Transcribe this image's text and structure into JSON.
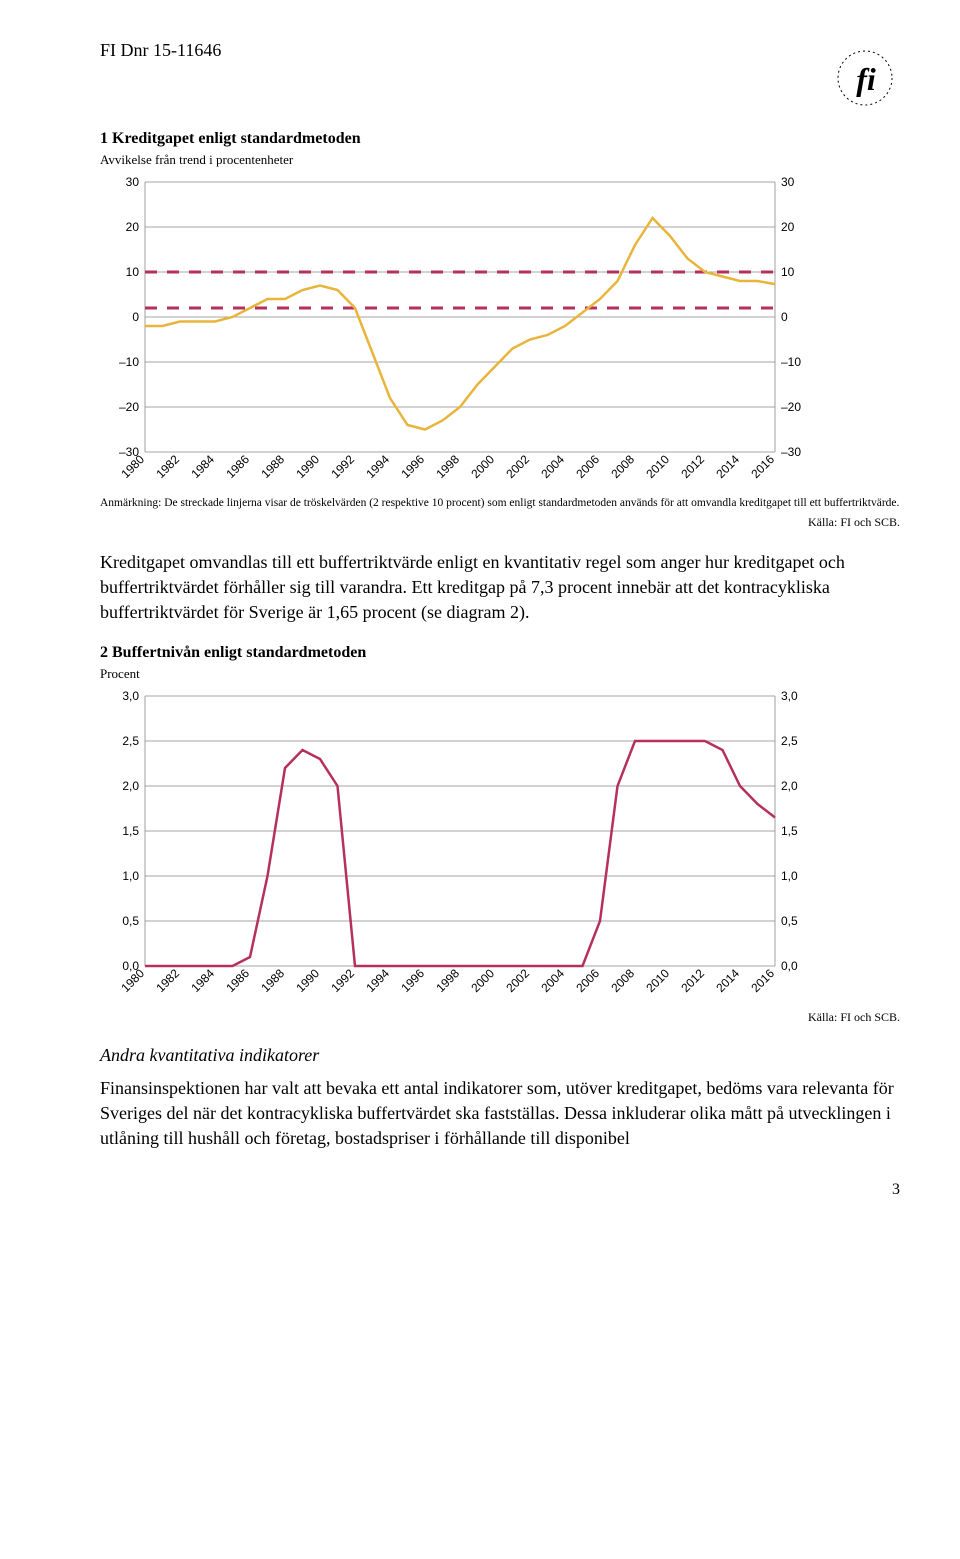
{
  "header": {
    "doc_ref": "FI Dnr 15-11646"
  },
  "chart1": {
    "title": "1 Kreditgapet enligt standardmetoden",
    "subtitle": "Avvikelse från trend i procentenheter",
    "note": "Anmärkning: De streckade linjerna visar de tröskelvärden (2 respektive 10 procent) som enligt standardmetoden används för att omvandla kreditgapet till ett buffertriktvärde.",
    "source": "Källa: FI och SCB.",
    "ylim": [
      -30,
      30
    ],
    "ytick_step": 10,
    "x_categories": [
      "1980",
      "1982",
      "1984",
      "1986",
      "1988",
      "1990",
      "1992",
      "1994",
      "1996",
      "1998",
      "2000",
      "2002",
      "2004",
      "2006",
      "2008",
      "2010",
      "2012",
      "2014",
      "2016"
    ],
    "threshold_lines": [
      2,
      10
    ],
    "line_color": "#e8b43c",
    "threshold_color": "#b5305c",
    "grid_color": "#888888",
    "background_color": "#ffffff",
    "line_width": 2.5,
    "values": {
      "1980": -2,
      "1981": -2,
      "1982": -1,
      "1983": -1,
      "1984": -1,
      "1985": 0,
      "1986": 2,
      "1987": 4,
      "1988": 4,
      "1989": 6,
      "1990": 7,
      "1991": 6,
      "1992": 2,
      "1993": -8,
      "1994": -18,
      "1995": -24,
      "1996": -25,
      "1997": -23,
      "1998": -20,
      "1999": -15,
      "2000": -11,
      "2001": -7,
      "2002": -5,
      "2003": -4,
      "2004": -2,
      "2005": 1,
      "2006": 4,
      "2007": 8,
      "2008": 16,
      "2009": 22,
      "2010": 18,
      "2011": 13,
      "2012": 10,
      "2013": 9,
      "2014": 8,
      "2015": 8,
      "2016": 7.3
    }
  },
  "paragraph1": "Kreditgapet omvandlas till ett buffertriktvärde enligt en kvantitativ regel som anger hur kreditgapet och buffertriktvärdet förhåller sig till varandra. Ett kreditgap på 7,3 procent innebär att det kontracykliska buffertriktvärdet för Sverige är 1,65 procent (se diagram 2).",
  "chart2": {
    "title": "2 Buffertnivån enligt standardmetoden",
    "subtitle": "Procent",
    "source": "Källa: FI och SCB.",
    "ylim": [
      0,
      3.0
    ],
    "ytick_step": 0.5,
    "x_categories": [
      "1980",
      "1982",
      "1984",
      "1986",
      "1988",
      "1990",
      "1992",
      "1994",
      "1996",
      "1998",
      "2000",
      "2002",
      "2004",
      "2006",
      "2008",
      "2010",
      "2012",
      "2014",
      "2016"
    ],
    "line_color": "#b5305c",
    "grid_color": "#888888",
    "background_color": "#ffffff",
    "line_width": 2.5,
    "values": {
      "1980": 0,
      "1981": 0,
      "1982": 0,
      "1983": 0,
      "1984": 0,
      "1985": 0,
      "1986": 0.1,
      "1987": 1.0,
      "1988": 2.2,
      "1989": 2.4,
      "1990": 2.3,
      "1991": 2.0,
      "1992": 0,
      "1993": 0,
      "1994": 0,
      "1995": 0,
      "1996": 0,
      "1997": 0,
      "1998": 0,
      "1999": 0,
      "2000": 0,
      "2001": 0,
      "2002": 0,
      "2003": 0,
      "2004": 0,
      "2005": 0,
      "2006": 0.5,
      "2007": 2.0,
      "2008": 2.5,
      "2009": 2.5,
      "2010": 2.5,
      "2011": 2.5,
      "2012": 2.5,
      "2013": 2.4,
      "2014": 2.0,
      "2015": 1.8,
      "2016": 1.65
    }
  },
  "section_heading": "Andra kvantitativa indikatorer",
  "paragraph2": "Finansinspektionen har valt att bevaka ett antal indikatorer som, utöver kreditgapet, bedöms vara relevanta för Sveriges del när det kontracykliska buffertvärdet ska fastställas. Dessa inkluderar olika mått på utvecklingen i utlåning till hushåll och företag, bostadspriser i förhållande till disponibel",
  "page_number": "3"
}
